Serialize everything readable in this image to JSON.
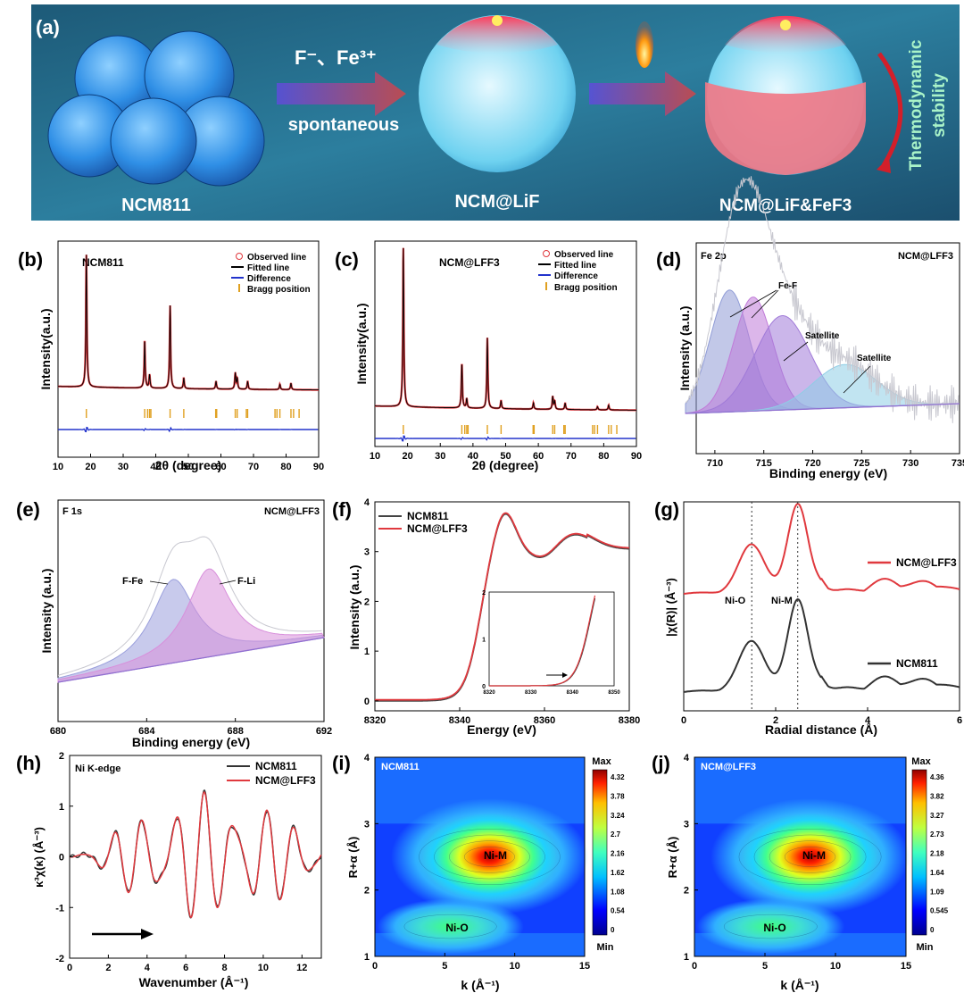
{
  "panel_a": {
    "label": "(a)",
    "ion_text": "F⁻、Fe³⁺",
    "arrow_text": "spontaneous",
    "names": [
      "NCM811",
      "NCM@LiF",
      "NCM@LiF&FeF3"
    ],
    "side_text": [
      "Thermodynamic",
      "stability"
    ]
  },
  "chart_data": [
    {
      "id": "b",
      "type": "line",
      "panel_label": "(b)",
      "title": "NCM811",
      "xlabel": "2θ (degree)",
      "ylabel": "Intensity(a.u.)",
      "xlim": [
        10,
        90
      ],
      "xticks": [
        10,
        20,
        30,
        40,
        50,
        60,
        70,
        80,
        90
      ],
      "legend": [
        "Observed line",
        "Fitted line",
        "Difference",
        "Bragg position"
      ],
      "peaks": [
        [
          18.7,
          1.0
        ],
        [
          36.6,
          0.36
        ],
        [
          38.1,
          0.1
        ],
        [
          44.4,
          0.62
        ],
        [
          48.6,
          0.08
        ],
        [
          58.5,
          0.06
        ],
        [
          64.4,
          0.12
        ],
        [
          65.0,
          0.08
        ],
        [
          68.2,
          0.06
        ],
        [
          78.1,
          0.04
        ],
        [
          81.5,
          0.05
        ]
      ],
      "bragg": [
        18.7,
        36.6,
        37.5,
        38.1,
        38.5,
        44.4,
        48.6,
        58.4,
        58.7,
        64.4,
        65.0,
        67.8,
        68.2,
        76.6,
        77.2,
        78.1,
        81.5,
        82.3,
        84.0
      ]
    },
    {
      "id": "c",
      "type": "line",
      "panel_label": "(c)",
      "title": "NCM@LFF3",
      "xlabel": "2θ (degree)",
      "ylabel": "Intensity(a.u.)",
      "xlim": [
        10,
        90
      ],
      "xticks": [
        10,
        20,
        30,
        40,
        50,
        60,
        70,
        80,
        90
      ],
      "legend": [
        "Observed line",
        "Fitted line",
        "Difference",
        "Bragg position"
      ],
      "peaks": [
        [
          18.7,
          1.0
        ],
        [
          36.6,
          0.28
        ],
        [
          38.1,
          0.06
        ],
        [
          44.4,
          0.44
        ],
        [
          48.6,
          0.05
        ],
        [
          58.5,
          0.04
        ],
        [
          64.4,
          0.08
        ],
        [
          65.0,
          0.05
        ],
        [
          68.2,
          0.04
        ],
        [
          78.1,
          0.02
        ],
        [
          81.5,
          0.03
        ]
      ],
      "bragg": [
        18.7,
        36.6,
        37.5,
        38.1,
        38.5,
        44.4,
        48.6,
        58.4,
        58.7,
        64.4,
        65.0,
        67.8,
        68.2,
        76.6,
        77.2,
        78.1,
        81.5,
        82.3,
        84.0
      ]
    },
    {
      "id": "d",
      "type": "area",
      "panel_label": "(d)",
      "title": "Fe 2p",
      "sample": "NCM@LFF3",
      "xlabel": "Binding energy (eV)",
      "ylabel": "Intensity (a.u.)",
      "xlim": [
        707,
        735
      ],
      "xticks": [
        710,
        715,
        720,
        725,
        730,
        735
      ],
      "annotations": [
        "Fe-F",
        "Satellite",
        "Satellite"
      ],
      "components": [
        {
          "center": 711.5,
          "height": 0.62,
          "width": 2.0,
          "color": "#8f9bd6"
        },
        {
          "center": 713.9,
          "height": 0.58,
          "width": 2.0,
          "color": "#c07ad8"
        },
        {
          "center": 716.9,
          "height": 0.48,
          "width": 2.8,
          "color": "#a07ad8"
        },
        {
          "center": 723.3,
          "height": 0.22,
          "width": 3.2,
          "color": "#8ecde6"
        }
      ]
    },
    {
      "id": "e",
      "type": "area",
      "panel_label": "(e)",
      "title": "F 1s",
      "sample": "NCM@LFF3",
      "xlabel": "Binding energy (eV)",
      "ylabel": "Intensity (a.u.)",
      "xlim": [
        680,
        692
      ],
      "xticks": [
        680,
        684,
        688,
        692
      ],
      "annotations": [
        "F-Fe",
        "F-Li"
      ],
      "components": [
        {
          "center": 685.2,
          "height": 0.55,
          "width": 1.2,
          "color": "#9a9fdc",
          "label": "F-Fe"
        },
        {
          "center": 686.8,
          "height": 0.58,
          "width": 1.2,
          "color": "#d88fdb",
          "label": "F-Li"
        }
      ]
    },
    {
      "id": "f",
      "type": "line",
      "panel_label": "(f)",
      "xlabel": "Energy (eV)",
      "ylabel": "Intensity (a.u.)",
      "xlim": [
        8320,
        8380
      ],
      "ylim": [
        -0.2,
        4
      ],
      "xticks": [
        8320,
        8340,
        8360,
        8380
      ],
      "yticks": [
        0,
        1,
        2,
        3,
        4
      ],
      "series": [
        {
          "name": "NCM811",
          "color": "#444444"
        },
        {
          "name": "NCM@LFF3",
          "color": "#e0393e"
        }
      ],
      "inset": {
        "xlim": [
          8320,
          8350
        ],
        "ylim": [
          0,
          2
        ],
        "xticks": [
          8320,
          8330,
          8340,
          8350
        ],
        "yticks": [
          0,
          1,
          2
        ]
      }
    },
    {
      "id": "g",
      "type": "line",
      "panel_label": "(g)",
      "xlabel": "Radial distance (Å)",
      "ylabel": "|χ(R)| (Å⁻³)",
      "xlim": [
        0,
        6
      ],
      "xticks": [
        0,
        2,
        4,
        6
      ],
      "annotations": [
        "Ni-O",
        "Ni-M"
      ],
      "series": [
        {
          "name": "NCM@LFF3",
          "color": "#e0393e"
        },
        {
          "name": "NCM811",
          "color": "#333333"
        }
      ]
    },
    {
      "id": "h",
      "type": "line",
      "panel_label": "(h)",
      "title": "Ni K-edge",
      "xlabel": "Wavenumber (Å⁻¹)",
      "ylabel": "κ³χ(κ) (Å⁻³)",
      "xlim": [
        0,
        13
      ],
      "ylim": [
        -2,
        2
      ],
      "xticks": [
        0,
        2,
        4,
        6,
        8,
        10,
        12
      ],
      "yticks": [
        -2,
        -1,
        0,
        1,
        2
      ],
      "series": [
        {
          "name": "NCM811",
          "color": "#333333"
        },
        {
          "name": "NCM@LFF3",
          "color": "#e0393e"
        }
      ]
    },
    {
      "id": "i",
      "type": "heatmap",
      "panel_label": "(i)",
      "title": "NCM811",
      "xlabel": "k (Å⁻¹)",
      "ylabel": "R+α (Å)",
      "xlim": [
        0,
        15
      ],
      "ylim": [
        1,
        4
      ],
      "xticks": [
        0,
        5,
        10,
        15
      ],
      "yticks": [
        1,
        2,
        3,
        4
      ],
      "colorbar": [
        "4.32",
        "3.78",
        "3.24",
        "2.7",
        "2.16",
        "1.62",
        "1.08",
        "0.54",
        "0"
      ],
      "annotations": [
        "Ni-M",
        "Ni-O"
      ]
    },
    {
      "id": "j",
      "type": "heatmap",
      "panel_label": "(j)",
      "title": "NCM@LFF3",
      "xlabel": "k (Å⁻¹)",
      "ylabel": "R+α (Å)",
      "xlim": [
        0,
        15
      ],
      "ylim": [
        1,
        4
      ],
      "xticks": [
        0,
        5,
        10,
        15
      ],
      "yticks": [
        1,
        2,
        3,
        4
      ],
      "colorbar": [
        "4.36",
        "3.82",
        "3.27",
        "2.73",
        "2.18",
        "1.64",
        "1.09",
        "0.545",
        "0"
      ],
      "annotations": [
        "Ni-M",
        "Ni-O"
      ]
    }
  ],
  "colorbar_labels": {
    "max": "Max",
    "min": "Min"
  }
}
